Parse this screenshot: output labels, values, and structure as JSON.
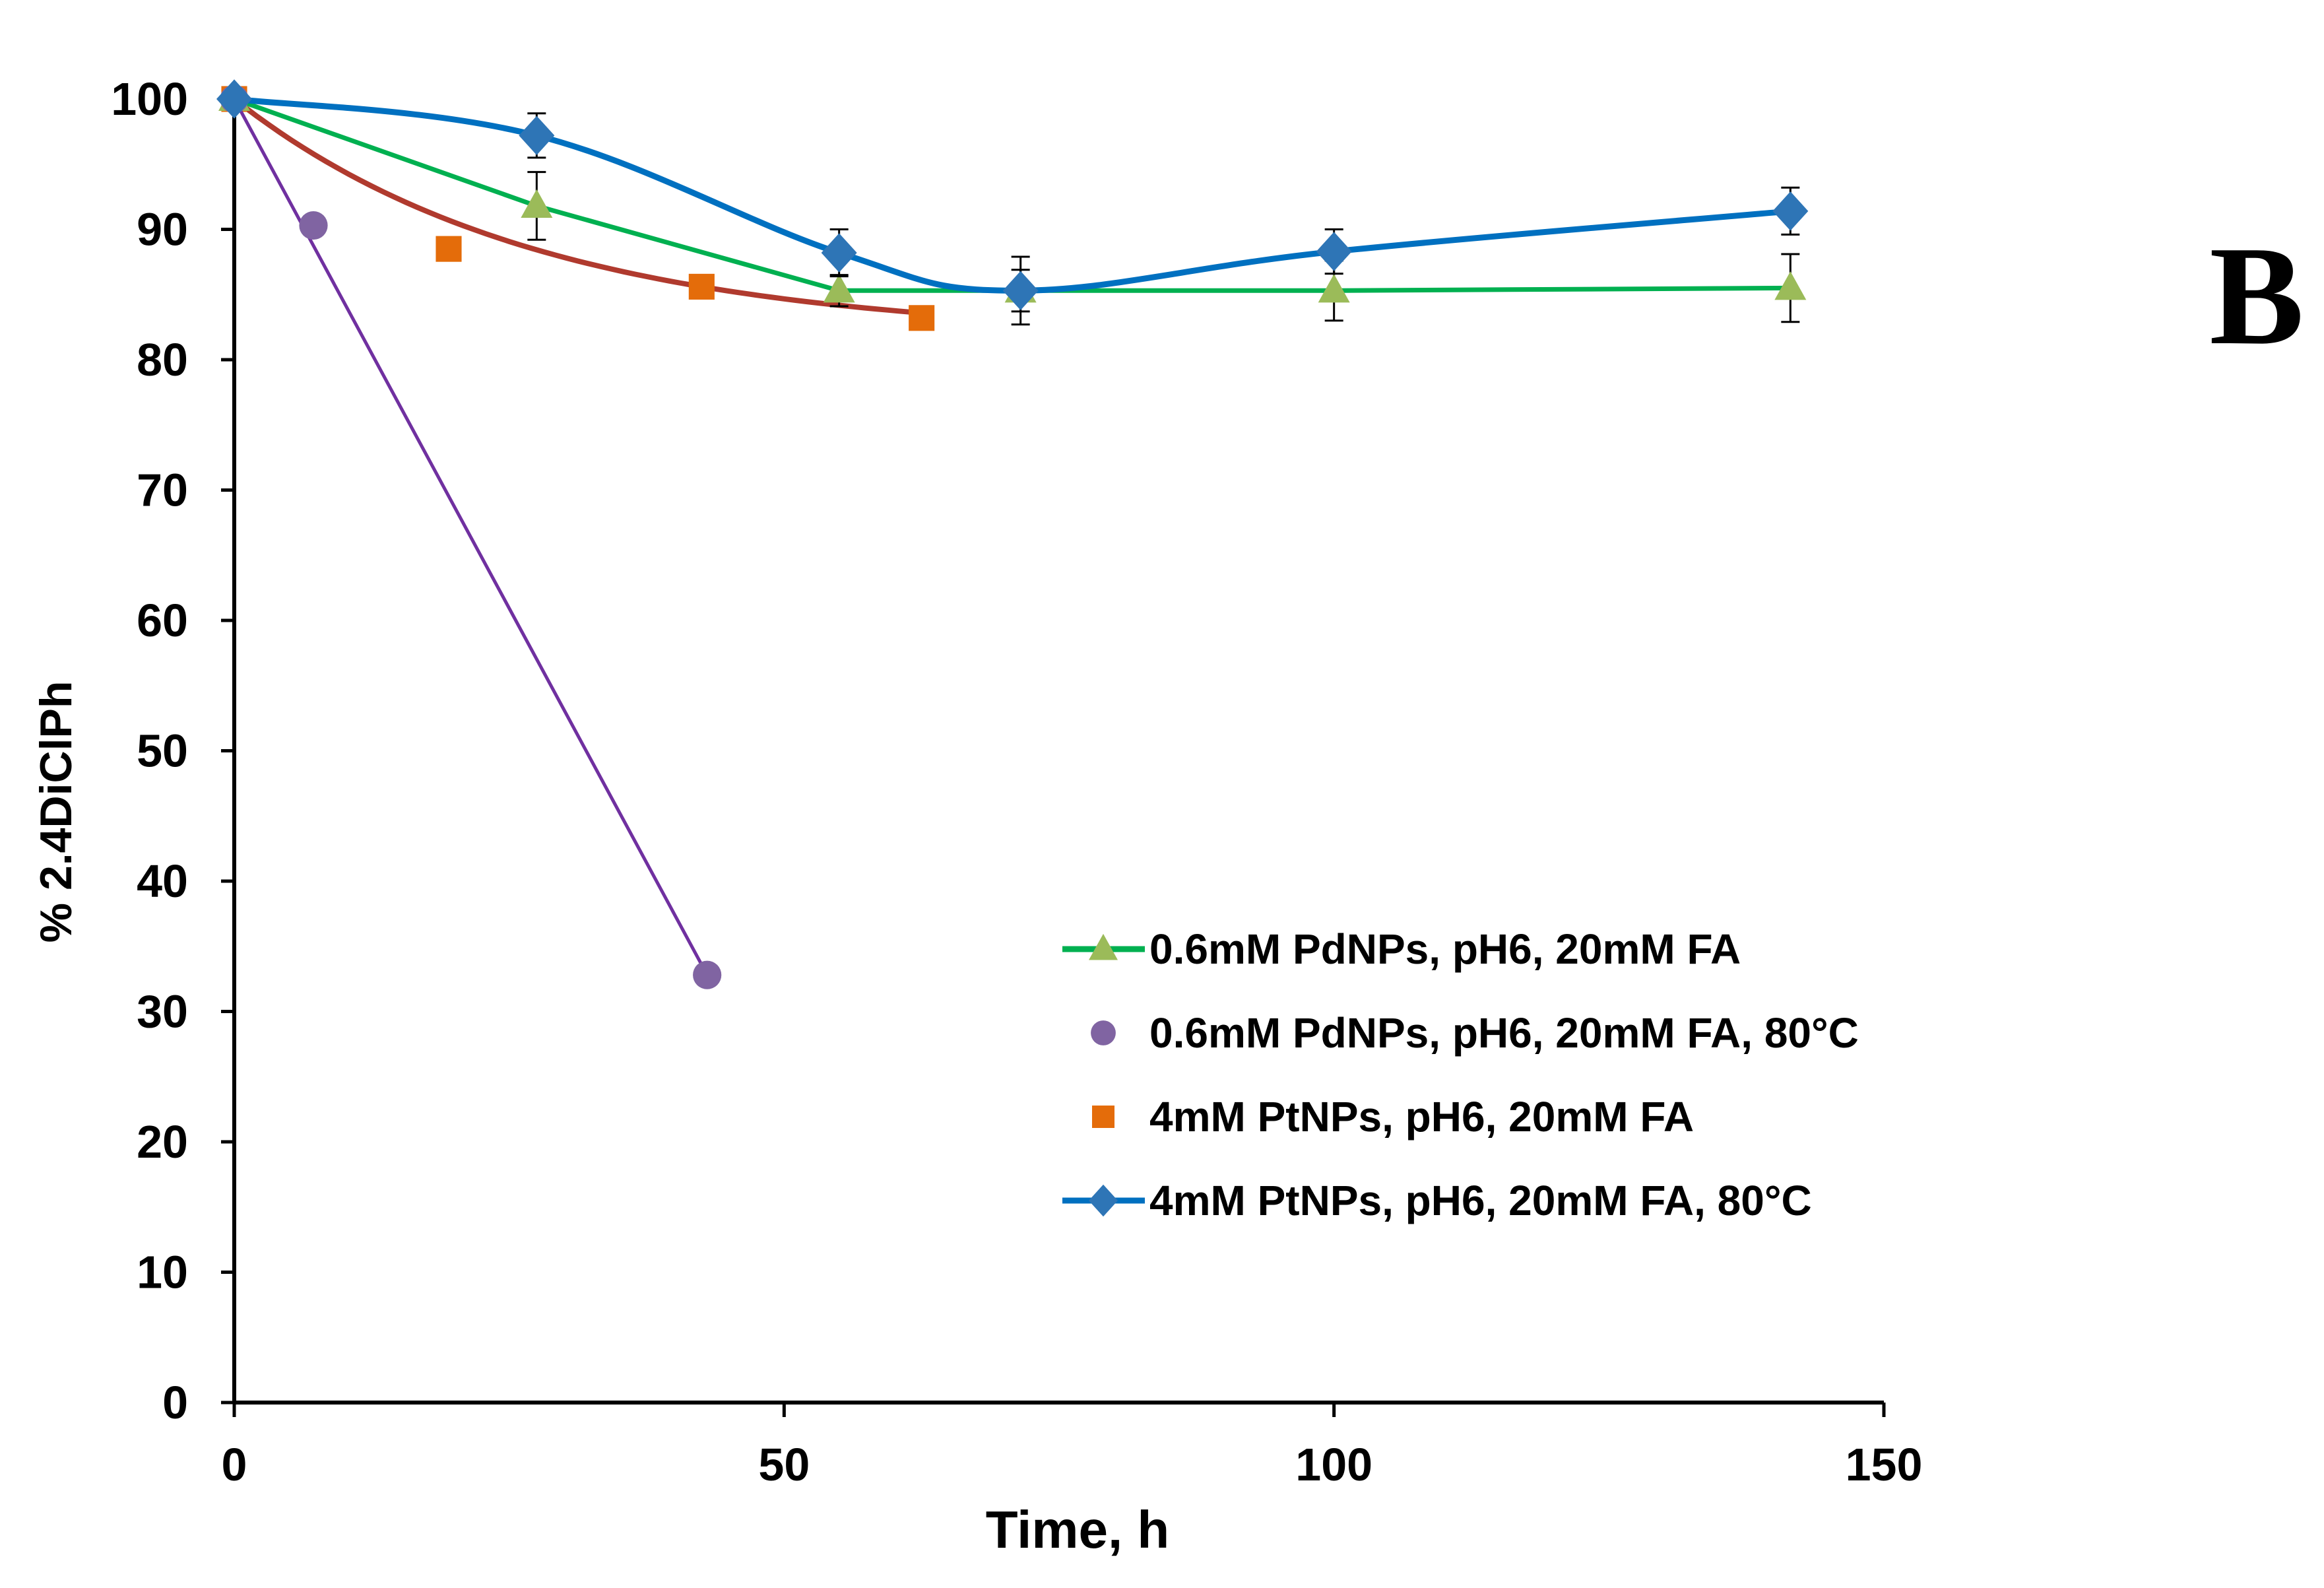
{
  "chart_data": {
    "type": "line",
    "title": "",
    "panel_label": "B",
    "xlabel": "Time, h",
    "ylabel": "% 2.4DiClPh",
    "xlim": [
      0,
      150
    ],
    "ylim": [
      0,
      100
    ],
    "x_ticks": [
      "0",
      "50",
      "100",
      "150"
    ],
    "y_ticks": [
      "0",
      "10",
      "20",
      "30",
      "40",
      "50",
      "60",
      "70",
      "80",
      "90",
      "100"
    ],
    "grid": false,
    "legend_position": "center-right",
    "series": [
      {
        "name": "0.6mM PdNPs, pH6, 20mM FA",
        "color": "#00B050",
        "marker": "triangle",
        "marker_color": "#9BBB59",
        "line": "straight",
        "x": [
          0,
          27.5,
          55,
          71.5,
          100,
          141.5
        ],
        "y": [
          100,
          91.8,
          85.3,
          85.3,
          85.3,
          85.5
        ],
        "error": [
          0,
          2.6,
          1.2,
          1.6,
          2.3,
          2.6
        ]
      },
      {
        "name": "0.6mM PdNPs, pH6, 20mM FA, 80°C",
        "color": "#7030A0",
        "marker": "circle",
        "marker_color": "#8064A2",
        "line": "trend",
        "x": [
          0,
          7.2,
          43
        ],
        "y": [
          100,
          90.3,
          32.8
        ]
      },
      {
        "name": "4mM PtNPs, pH6, 20mM FA",
        "color": "#B03A2E",
        "marker": "square",
        "marker_color": "#E46C0A",
        "line": "trend",
        "x": [
          0,
          19.5,
          42.5,
          62.5
        ],
        "y": [
          100,
          88.5,
          85.6,
          83.2
        ]
      },
      {
        "name": "4mM PtNPs, pH6, 20mM FA, 80°C",
        "color": "#0070C0",
        "marker": "diamond",
        "marker_color": "#2E75B6",
        "line": "smooth",
        "x": [
          0,
          27.5,
          55,
          71.5,
          100,
          141.5
        ],
        "y": [
          100,
          97.2,
          88.2,
          85.3,
          88.3,
          91.4
        ],
        "error": [
          0,
          1.7,
          1.8,
          2.6,
          1.7,
          1.8
        ]
      }
    ]
  }
}
